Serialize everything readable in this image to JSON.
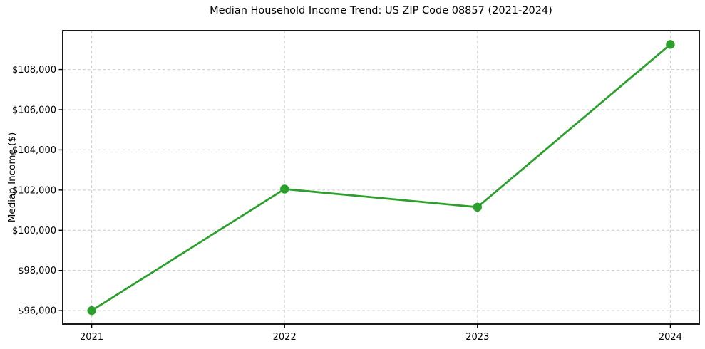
{
  "chart_data": {
    "type": "line",
    "title": "Median Household Income Trend: US ZIP Code 08857 (2021-2024)",
    "xlabel": "",
    "ylabel": "Median Income ($)",
    "categories": [
      "2021",
      "2022",
      "2023",
      "2024"
    ],
    "x": [
      2021,
      2022,
      2023,
      2024
    ],
    "series": [
      {
        "name": "Median Household Income",
        "values": [
          96000,
          102050,
          101150,
          109250
        ]
      }
    ],
    "xlim": [
      2020.85,
      2024.15
    ],
    "ylim": [
      95330,
      109935
    ],
    "yticks": [
      96000,
      98000,
      100000,
      102000,
      104000,
      106000,
      108000
    ],
    "ytick_labels": [
      "$96,000",
      "$98,000",
      "$100,000",
      "$102,000",
      "$104,000",
      "$106,000",
      "$108,000"
    ],
    "grid": true,
    "grid_style": "dashed",
    "legend_position": "none"
  },
  "style": {
    "line_color": "#2ca02c",
    "marker_color": "#2ca02c",
    "grid_color": "#cfcfcf",
    "axis_color": "#000000",
    "background": "#ffffff"
  }
}
